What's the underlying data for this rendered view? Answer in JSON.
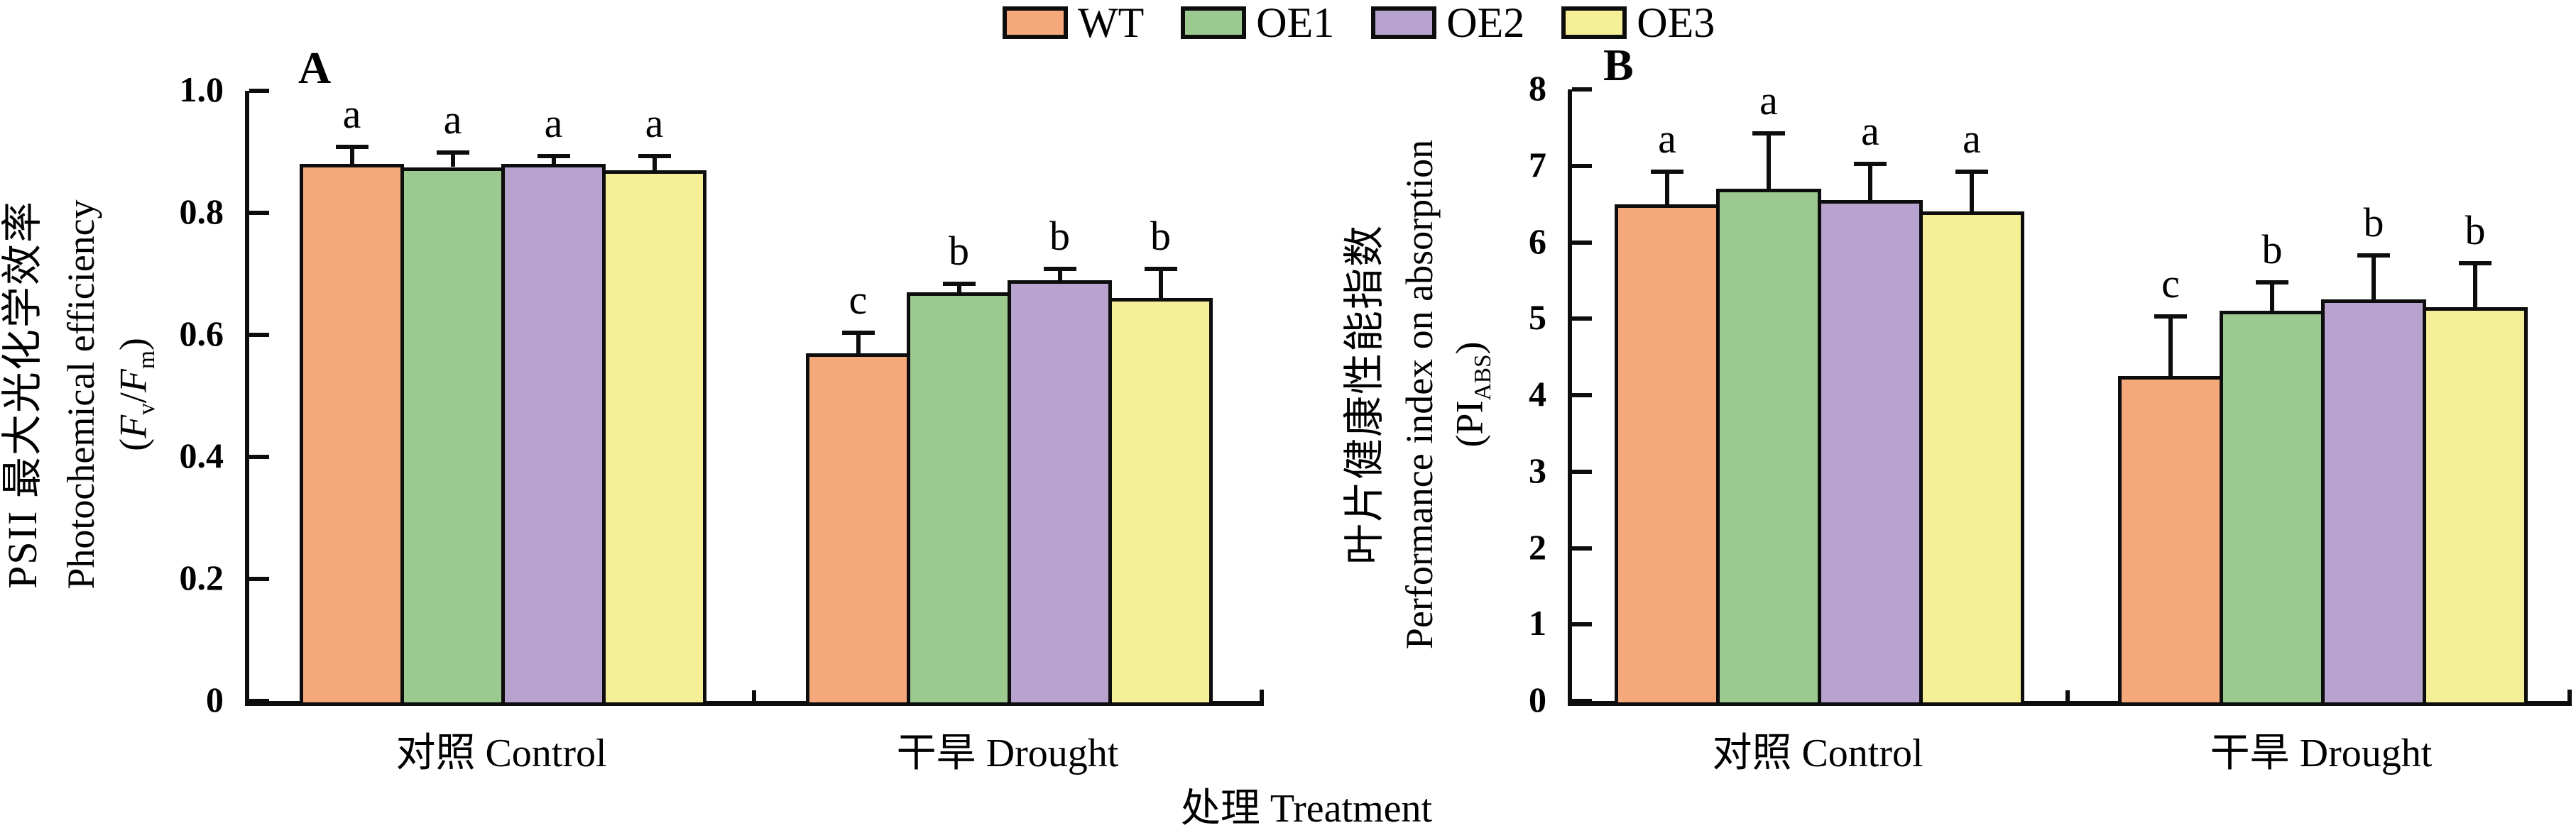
{
  "figure": {
    "x_axis_title": "处理 Treatment",
    "background_color": "#FFFFFF",
    "axis_color": "#0D0D0D"
  },
  "legend": {
    "position": "top-center",
    "items": [
      {
        "label": "WT",
        "color": "#F5A97A"
      },
      {
        "label": "OE1",
        "color": "#9CC990"
      },
      {
        "label": "OE2",
        "color": "#B7A3CE"
      },
      {
        "label": "OE3",
        "color": "#F5F098"
      }
    ]
  },
  "chart_data": [
    {
      "id": "A",
      "type": "bar",
      "panel_label": "A",
      "title": "",
      "ylabel_cn": "PSII 最大光化学效率",
      "ylabel_en": "Photochemical efficiency",
      "ylabel_formula": [
        {
          "text": "(",
          "style": "normal"
        },
        {
          "text": "F",
          "style": "italic"
        },
        {
          "text": "v",
          "style": "sub"
        },
        {
          "text": "/",
          "style": "normal"
        },
        {
          "text": "F",
          "style": "italic"
        },
        {
          "text": "m",
          "style": "sub"
        },
        {
          "text": ")",
          "style": "normal"
        }
      ],
      "categories": [
        "对照 Control",
        "干旱 Drought"
      ],
      "ylim": [
        0,
        1.0
      ],
      "yticks": [
        0,
        0.2,
        0.4,
        0.6,
        0.8,
        1.0
      ],
      "ytick_labels": [
        "0",
        "0.2",
        "0.4",
        "0.6",
        "0.8",
        "1.0"
      ],
      "grid": false,
      "error_bars": true,
      "series": [
        {
          "name": "WT",
          "color": "#F5A97A",
          "values": [
            0.88,
            0.57
          ],
          "errors": [
            0.025,
            0.03
          ],
          "letters": [
            "a",
            "c"
          ]
        },
        {
          "name": "OE1",
          "color": "#9CC990",
          "values": [
            0.875,
            0.67
          ],
          "errors": [
            0.02,
            0.01
          ],
          "letters": [
            "a",
            "b"
          ]
        },
        {
          "name": "OE2",
          "color": "#B7A3CE",
          "values": [
            0.88,
            0.69
          ],
          "errors": [
            0.01,
            0.015
          ],
          "letters": [
            "a",
            "b"
          ]
        },
        {
          "name": "OE3",
          "color": "#F5F098",
          "values": [
            0.87,
            0.66
          ],
          "errors": [
            0.02,
            0.045
          ],
          "letters": [
            "a",
            "b"
          ]
        }
      ]
    },
    {
      "id": "B",
      "type": "bar",
      "panel_label": "B",
      "title": "",
      "ylabel_cn": "叶片健康性能指数",
      "ylabel_en": "Performance index on absorption",
      "ylabel_formula": [
        {
          "text": "(PI",
          "style": "normal"
        },
        {
          "text": "ABS",
          "style": "sub"
        },
        {
          "text": ")",
          "style": "normal"
        }
      ],
      "categories": [
        "对照 Control",
        "干旱 Drought"
      ],
      "ylim": [
        0,
        8
      ],
      "yticks": [
        0,
        1,
        2,
        3,
        4,
        5,
        6,
        7,
        8
      ],
      "ytick_labels": [
        "0",
        "1",
        "2",
        "3",
        "4",
        "5",
        "6",
        "7",
        "8"
      ],
      "grid": false,
      "error_bars": true,
      "series": [
        {
          "name": "WT",
          "color": "#F5A97A",
          "values": [
            6.5,
            4.25
          ],
          "errors": [
            0.4,
            0.75
          ],
          "letters": [
            "a",
            "c"
          ]
        },
        {
          "name": "OE1",
          "color": "#9CC990",
          "values": [
            6.7,
            5.1
          ],
          "errors": [
            0.7,
            0.35
          ],
          "letters": [
            "a",
            "b"
          ]
        },
        {
          "name": "OE2",
          "color": "#B7A3CE",
          "values": [
            6.55,
            5.25
          ],
          "errors": [
            0.45,
            0.55
          ],
          "letters": [
            "a",
            "b"
          ]
        },
        {
          "name": "OE3",
          "color": "#F5F098",
          "values": [
            6.4,
            5.15
          ],
          "errors": [
            0.5,
            0.55
          ],
          "letters": [
            "a",
            "b"
          ]
        }
      ]
    }
  ]
}
